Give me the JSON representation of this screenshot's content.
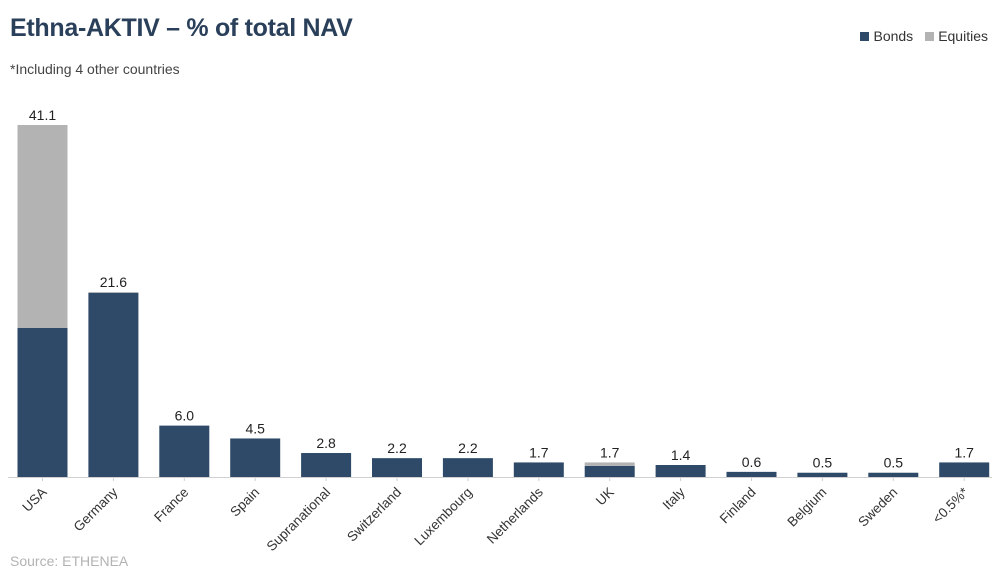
{
  "title": "Ethna-AKTIV – % of total NAV",
  "footnote": "*Including 4 other countries",
  "source": "Source: ETHENEA",
  "colors": {
    "bonds": "#2e4a68",
    "equities": "#b3b3b3"
  },
  "chart_data": {
    "type": "bar",
    "stacked": true,
    "categories": [
      "USA",
      "Germany",
      "France",
      "Spain",
      "Supranational",
      "Switzerland",
      "Luxembourg",
      "Netherlands",
      "UK",
      "Italy",
      "Finland",
      "Belgium",
      "Sweden",
      "<0.5%*"
    ],
    "series": [
      {
        "name": "Bonds",
        "values": [
          17.4,
          21.5,
          6.0,
          4.5,
          2.8,
          2.2,
          2.2,
          1.7,
          1.3,
          1.4,
          0.6,
          0.5,
          0.5,
          1.7
        ]
      },
      {
        "name": "Equities",
        "values": [
          23.7,
          0.1,
          0.0,
          0.0,
          0.0,
          0.0,
          0.0,
          0.0,
          0.4,
          0.0,
          0.0,
          0.0,
          0.0,
          0.0
        ]
      }
    ],
    "totals": [
      "41.1",
      "21.6",
      "6.0",
      "4.5",
      "2.8",
      "2.2",
      "2.2",
      "1.7",
      "1.7",
      "1.4",
      "0.6",
      "0.5",
      "0.5",
      "1.7"
    ],
    "ylim": [
      0,
      41.1
    ],
    "legend_position": "top-right",
    "grid": false,
    "xlabel": "",
    "ylabel": ""
  }
}
